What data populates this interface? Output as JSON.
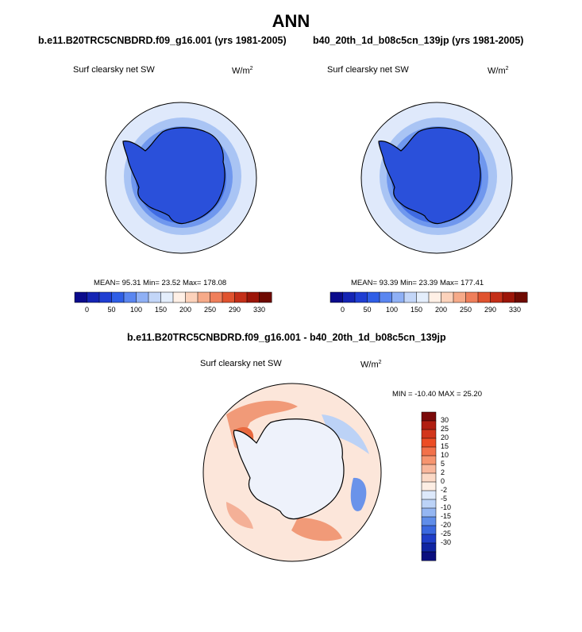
{
  "title": "ANN",
  "panels": [
    {
      "case": "b.e11.B20TRC5CNBDRD.f09_g16.001 (yrs 1981-2005)",
      "variable": "Surf clearsky net SW",
      "units": "W/m",
      "units_sup": "2",
      "stats": "MEAN=  95.31  Min=  23.52  Max= 178.08"
    },
    {
      "case": "b40_20th_1d_b08c5cn_139jp (yrs 1981-2005)",
      "variable": "Surf clearsky net SW",
      "units": "W/m",
      "units_sup": "2",
      "stats": "MEAN=  93.39  Min=  23.39  Max= 177.41"
    }
  ],
  "colorbar": {
    "labels": [
      "0",
      "50",
      "100",
      "150",
      "200",
      "250",
      "290",
      "330"
    ],
    "colors": [
      "#0b0b8c",
      "#1424b4",
      "#1f3ed2",
      "#2f5ee6",
      "#5a86f0",
      "#8fb0f5",
      "#c3d6f8",
      "#e4eefc",
      "#fff0e6",
      "#fcd2bb",
      "#f6aa89",
      "#ef7f5b",
      "#e0532f",
      "#c42f18",
      "#9c1508",
      "#6e0a02"
    ]
  },
  "difference": {
    "title": "b.e11.B20TRC5CNBDRD.f09_g16.001 - b40_20th_1d_b08c5cn_139jp",
    "variable": "Surf clearsky net SW",
    "units": "W/m",
    "units_sup": "2",
    "stats": "MIN = -10.40  MAX =  25.20",
    "colorbar_labels": [
      "30",
      "25",
      "20",
      "15",
      "10",
      "5",
      "2",
      "0",
      "-2",
      "-5",
      "-10",
      "-15",
      "-20",
      "-25",
      "-30"
    ],
    "colorbar_colors": [
      "#7b0a0a",
      "#b01f12",
      "#d2361c",
      "#ec4d25",
      "#f2714a",
      "#f6946f",
      "#f8b79c",
      "#fbd9c6",
      "#fdeee4",
      "#dde9fb",
      "#bcd3f7",
      "#94b6f2",
      "#5f8de9",
      "#3a68df",
      "#1f3ec8",
      "#1025a2",
      "#0b0f7e"
    ]
  }
}
